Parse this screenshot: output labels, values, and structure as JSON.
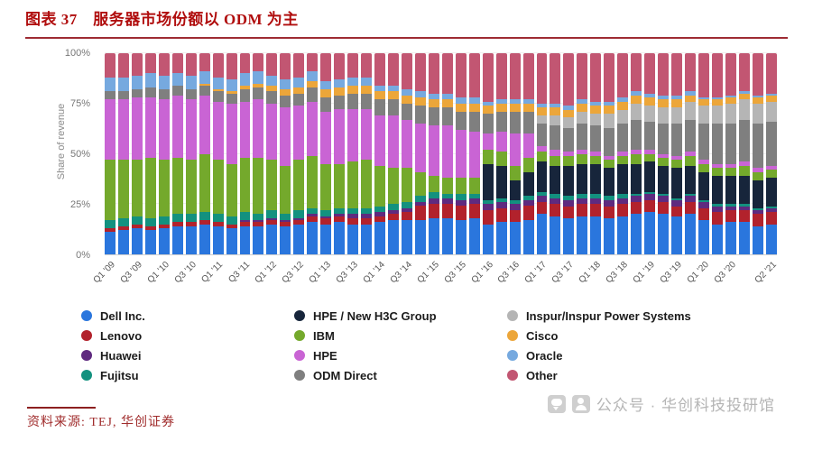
{
  "header": {
    "title": "图表 37　服务器市场份额以 ODM 为主"
  },
  "footer": {
    "source": "资料来源: TEJ, 华创证券",
    "watermark": "公众号 · 华创科技投研馆"
  },
  "chart_data": {
    "type": "bar",
    "stacked": true,
    "normalized_to_100pct": true,
    "title": "",
    "xlabel": "",
    "ylabel": "Share of revenue",
    "ylim": [
      0,
      100
    ],
    "yticks": [
      "0%",
      "25%",
      "50%",
      "75%",
      "100%"
    ],
    "grid": "faint-horizontal",
    "legend_position": "bottom",
    "categories": [
      "Q1 '09",
      "Q2 '09",
      "Q3 '09",
      "Q4 '09",
      "Q1 '10",
      "Q2 '10",
      "Q3 '10",
      "Q4 '10",
      "Q1 '11",
      "Q2 '11",
      "Q3 '11",
      "Q4 '11",
      "Q1 '12",
      "Q2 '12",
      "Q3 '12",
      "Q4 '12",
      "Q1 '13",
      "Q2 '13",
      "Q3 '13",
      "Q4 '13",
      "Q1 '14",
      "Q2 '14",
      "Q3 '14",
      "Q4 '14",
      "Q1 '15",
      "Q2 '15",
      "Q3 '15",
      "Q4 '15",
      "Q1 '16",
      "Q2 '16",
      "Q3 '16",
      "Q4 '16",
      "Q1 '17",
      "Q2 '17",
      "Q3 '17",
      "Q4 '17",
      "Q1 '18",
      "Q2 '18",
      "Q3 '18",
      "Q4 '18",
      "Q1 '19",
      "Q2 '19",
      "Q3 '19",
      "Q4 '19",
      "Q1 '20",
      "Q2 '20",
      "Q3 '20",
      "Q4 '20",
      "Q1 '21",
      "Q2 '21"
    ],
    "shown_xtick_indices": [
      0,
      2,
      4,
      6,
      8,
      10,
      12,
      14,
      16,
      18,
      20,
      22,
      24,
      26,
      28,
      30,
      32,
      34,
      36,
      38,
      40,
      42,
      44,
      46,
      49
    ],
    "series": [
      {
        "name": "Dell Inc.",
        "color": "#2a76dd",
        "values": [
          11,
          12,
          13,
          12,
          13,
          14,
          14,
          15,
          14,
          13,
          14,
          14,
          15,
          14,
          15,
          16,
          15,
          16,
          15,
          15,
          16,
          17,
          17,
          17,
          18,
          18,
          17,
          18,
          15,
          16,
          16,
          17,
          20,
          19,
          18,
          19,
          19,
          18,
          19,
          20,
          21,
          20,
          19,
          20,
          17,
          15,
          16,
          16,
          14,
          15
        ]
      },
      {
        "name": "Lenovo",
        "color": "#b2222c",
        "values": [
          2,
          2,
          2,
          2,
          2,
          2,
          2,
          2,
          2,
          2,
          2,
          2,
          2,
          2,
          2,
          3,
          3,
          3,
          3,
          3,
          3,
          3,
          4,
          7,
          7,
          7,
          7,
          7,
          7,
          7,
          6,
          7,
          6,
          6,
          6,
          6,
          6,
          6,
          6,
          6,
          6,
          6,
          5,
          6,
          6,
          6,
          6,
          6,
          6,
          6
        ]
      },
      {
        "name": "Huawei",
        "color": "#5f2a7f",
        "values": [
          0,
          0,
          0,
          0,
          0,
          0,
          0,
          0,
          0,
          0,
          1,
          1,
          1,
          1,
          1,
          1,
          1,
          1,
          2,
          2,
          2,
          2,
          2,
          2,
          3,
          3,
          3,
          3,
          3,
          3,
          3,
          3,
          3,
          3,
          3,
          3,
          3,
          3,
          3,
          3,
          3,
          3,
          3,
          3,
          3,
          3,
          2,
          2,
          2,
          2
        ]
      },
      {
        "name": "Fujitsu",
        "color": "#13917f",
        "values": [
          4,
          4,
          4,
          4,
          4,
          4,
          4,
          4,
          4,
          4,
          4,
          3,
          4,
          3,
          4,
          3,
          3,
          3,
          3,
          3,
          3,
          3,
          3,
          3,
          3,
          2,
          3,
          2,
          2,
          2,
          2,
          2,
          2,
          2,
          2,
          2,
          2,
          2,
          2,
          1,
          1,
          1,
          1,
          1,
          1,
          1,
          1,
          1,
          1,
          1
        ]
      },
      {
        "name": "HPE / New H3C Group",
        "color": "#17253b",
        "values": [
          0,
          0,
          0,
          0,
          0,
          0,
          0,
          0,
          0,
          0,
          0,
          0,
          0,
          0,
          0,
          0,
          0,
          0,
          0,
          0,
          0,
          0,
          0,
          0,
          0,
          0,
          0,
          0,
          18,
          16,
          10,
          12,
          15,
          14,
          15,
          15,
          15,
          14,
          15,
          15,
          15,
          14,
          15,
          14,
          14,
          14,
          14,
          14,
          14,
          14
        ]
      },
      {
        "name": "IBM",
        "color": "#74a92c",
        "values": [
          30,
          29,
          28,
          30,
          28,
          28,
          27,
          29,
          27,
          26,
          27,
          28,
          25,
          24,
          25,
          26,
          23,
          22,
          23,
          24,
          20,
          18,
          17,
          12,
          8,
          8,
          8,
          8,
          7,
          7,
          7,
          7,
          5,
          5,
          5,
          5,
          4,
          4,
          4,
          5,
          4,
          4,
          4,
          5,
          4,
          4,
          4,
          5,
          4,
          4
        ]
      },
      {
        "name": "HPE",
        "color": "#c964d4",
        "values": [
          30,
          30,
          31,
          30,
          30,
          31,
          30,
          29,
          29,
          30,
          28,
          29,
          28,
          29,
          27,
          27,
          26,
          27,
          26,
          25,
          25,
          26,
          24,
          24,
          25,
          26,
          24,
          23,
          8,
          10,
          16,
          12,
          3,
          3,
          2,
          2,
          2,
          2,
          2,
          2,
          2,
          2,
          2,
          2,
          2,
          2,
          2,
          2,
          2,
          2
        ]
      },
      {
        "name": "ODM Direct",
        "color": "#7f7f7f",
        "values": [
          4,
          4,
          4,
          5,
          5,
          5,
          5,
          5,
          5,
          5,
          6,
          6,
          6,
          6,
          6,
          7,
          7,
          7,
          8,
          8,
          8,
          8,
          8,
          9,
          9,
          9,
          9,
          10,
          10,
          10,
          11,
          11,
          11,
          12,
          12,
          13,
          13,
          14,
          14,
          15,
          14,
          15,
          16,
          16,
          18,
          20,
          20,
          21,
          22,
          22
        ]
      },
      {
        "name": "Inspur/Inspur Power Systems",
        "color": "#b5b5b5",
        "values": [
          0,
          0,
          0,
          0,
          0,
          0,
          0,
          0,
          0,
          0,
          0,
          0,
          0,
          0,
          0,
          0,
          0,
          0,
          0,
          0,
          0,
          0,
          0,
          0,
          0,
          0,
          0,
          0,
          0,
          0,
          0,
          0,
          4,
          5,
          5,
          6,
          6,
          7,
          7,
          8,
          8,
          8,
          8,
          9,
          9,
          9,
          10,
          10,
          10,
          10
        ]
      },
      {
        "name": "Cisco",
        "color": "#eca63a",
        "values": [
          0,
          0,
          0,
          0,
          0,
          0,
          0,
          1,
          1,
          1,
          2,
          2,
          3,
          3,
          3,
          3,
          4,
          4,
          4,
          4,
          4,
          4,
          4,
          4,
          4,
          4,
          4,
          4,
          4,
          4,
          4,
          4,
          4,
          4,
          4,
          4,
          4,
          4,
          4,
          4,
          4,
          4,
          4,
          3,
          3,
          3,
          3,
          3,
          3,
          3
        ]
      },
      {
        "name": "Oracle",
        "color": "#76a9df",
        "values": [
          7,
          7,
          7,
          7,
          7,
          6,
          7,
          6,
          6,
          6,
          6,
          6,
          5,
          5,
          5,
          5,
          4,
          4,
          4,
          4,
          3,
          3,
          3,
          3,
          3,
          3,
          3,
          3,
          2,
          2,
          2,
          2,
          2,
          2,
          2,
          2,
          2,
          2,
          2,
          2,
          2,
          2,
          2,
          2,
          1,
          1,
          1,
          1,
          1,
          1
        ]
      },
      {
        "name": "Other",
        "color": "#c25672",
        "values": [
          12,
          12,
          11,
          10,
          11,
          10,
          11,
          9,
          12,
          13,
          10,
          9,
          11,
          13,
          12,
          9,
          14,
          13,
          12,
          12,
          16,
          16,
          18,
          19,
          20,
          20,
          22,
          22,
          24,
          23,
          23,
          23,
          25,
          25,
          26,
          23,
          24,
          24,
          22,
          19,
          20,
          21,
          21,
          19,
          22,
          22,
          21,
          19,
          21,
          20
        ]
      }
    ],
    "legend_columns": [
      [
        "Dell Inc.",
        "Lenovo",
        "Huawei",
        "Fujitsu"
      ],
      [
        "HPE / New H3C Group",
        "IBM",
        "HPE",
        "ODM Direct"
      ],
      [
        "Inspur/Inspur Power Systems",
        "Cisco",
        "Oracle",
        "Other"
      ]
    ]
  }
}
